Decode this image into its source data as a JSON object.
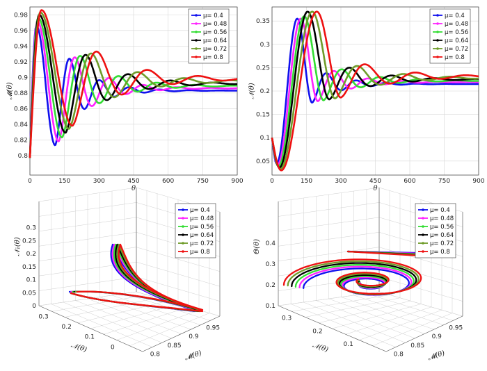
{
  "colors": [
    "#1010ee",
    "#ff22ff",
    "#33dd33",
    "#000000",
    "#6f9c2a",
    "#ee1111"
  ],
  "chart_data": [
    {
      "type": "line",
      "panel": "top-left",
      "xlabel": "θ",
      "ylabel": "𝓜(θ)",
      "xlim": [
        0,
        900
      ],
      "ylim": [
        0.775,
        0.99
      ],
      "xticks": [
        "0",
        "150",
        "300",
        "450",
        "600",
        "750",
        "900"
      ],
      "yticks": [
        "0.8",
        "0.82",
        "0.84",
        "0.86",
        "0.88",
        "0.9",
        "0.92",
        "0.94",
        "0.96",
        "0.98"
      ],
      "grid": true,
      "legend_position": "top-right",
      "series": [
        {
          "name": "μ= 0.4",
          "start": 0.797,
          "peak": 0.966,
          "peak_x": 28,
          "trough": 0.813,
          "trough_x": 110,
          "steady": 0.883,
          "period": 130
        },
        {
          "name": "μ= 0.48",
          "start": 0.797,
          "peak": 0.972,
          "peak_x": 32,
          "trough": 0.818,
          "trough_x": 125,
          "steady": 0.886,
          "period": 148
        },
        {
          "name": "μ= 0.56",
          "start": 0.797,
          "peak": 0.976,
          "peak_x": 36,
          "trough": 0.823,
          "trough_x": 140,
          "steady": 0.889,
          "period": 166
        },
        {
          "name": "μ= 0.64",
          "start": 0.797,
          "peak": 0.98,
          "peak_x": 40,
          "trough": 0.829,
          "trough_x": 155,
          "steady": 0.892,
          "period": 184
        },
        {
          "name": "μ= 0.72",
          "start": 0.797,
          "peak": 0.983,
          "peak_x": 45,
          "trough": 0.834,
          "trough_x": 170,
          "steady": 0.895,
          "period": 202
        },
        {
          "name": "μ= 0.8",
          "start": 0.797,
          "peak": 0.986,
          "peak_x": 50,
          "trough": 0.838,
          "trough_x": 185,
          "steady": 0.898,
          "period": 220
        }
      ]
    },
    {
      "type": "line",
      "panel": "top-right",
      "xlabel": "θ",
      "ylabel": "𝒩(θ)",
      "xlim": [
        0,
        900
      ],
      "ylim": [
        0.02,
        0.38
      ],
      "xticks": [
        "0",
        "150",
        "300",
        "450",
        "600",
        "750",
        "900"
      ],
      "yticks": [
        "0.05",
        "0.1",
        "0.15",
        "0.2",
        "0.25",
        "0.3",
        "0.35"
      ],
      "grid": true,
      "legend_position": "top-right",
      "series": [
        {
          "name": "μ= 0.4",
          "start": 0.1,
          "dip": 0.045,
          "dip_x": 20,
          "peak": 0.355,
          "peak_x": 110,
          "second": 0.175,
          "second_x": 175,
          "steady": 0.215,
          "period": 130
        },
        {
          "name": "μ= 0.48",
          "start": 0.1,
          "dip": 0.042,
          "dip_x": 24,
          "peak": 0.355,
          "peak_x": 125,
          "second": 0.178,
          "second_x": 200,
          "steady": 0.219,
          "period": 148
        },
        {
          "name": "μ= 0.56",
          "start": 0.1,
          "dip": 0.039,
          "dip_x": 28,
          "peak": 0.36,
          "peak_x": 140,
          "second": 0.18,
          "second_x": 225,
          "steady": 0.222,
          "period": 166
        },
        {
          "name": "μ= 0.64",
          "start": 0.1,
          "dip": 0.036,
          "dip_x": 32,
          "peak": 0.37,
          "peak_x": 155,
          "second": 0.182,
          "second_x": 250,
          "steady": 0.225,
          "period": 184
        },
        {
          "name": "μ= 0.72",
          "start": 0.1,
          "dip": 0.033,
          "dip_x": 36,
          "peak": 0.37,
          "peak_x": 175,
          "second": 0.184,
          "second_x": 275,
          "steady": 0.228,
          "period": 202
        },
        {
          "name": "μ= 0.8",
          "start": 0.1,
          "dip": 0.03,
          "dip_x": 40,
          "peak": 0.37,
          "peak_x": 195,
          "second": 0.186,
          "second_x": 300,
          "steady": 0.231,
          "period": 220
        }
      ]
    },
    {
      "type": "line3d",
      "panel": "bottom-left",
      "xlabel": "𝓜(θ)",
      "ylabel": "𝒩(θ)",
      "zlabel": "𝒩₁(θ)",
      "xticks": [
        "0.8",
        "0.85",
        "0.9",
        "0.95"
      ],
      "yticks": [
        "0.3",
        "0.2",
        "0.1",
        "0"
      ],
      "zticks": [
        "0",
        "0.05",
        "0.1",
        "0.15",
        "0.2",
        "0.25",
        "0.3"
      ],
      "grid": true,
      "legend_position": "top-right",
      "series": [
        {
          "name": "μ= 0.4"
        },
        {
          "name": "μ= 0.48"
        },
        {
          "name": "μ= 0.56"
        },
        {
          "name": "μ= 0.64"
        },
        {
          "name": "μ= 0.72"
        },
        {
          "name": "μ= 0.8"
        }
      ]
    },
    {
      "type": "line3d",
      "panel": "bottom-right",
      "xlabel": "𝓜(θ)",
      "ylabel": "𝒩(θ)",
      "zlabel": "Θ(θ)",
      "xticks": [
        "0.8",
        "0.85",
        "0.9",
        "0.95"
      ],
      "yticks": [
        "0.3",
        "0.2",
        "0.1"
      ],
      "zticks": [
        "0.1",
        "0.2",
        "0.3",
        "0.4"
      ],
      "grid": true,
      "legend_position": "top-right",
      "series": [
        {
          "name": "μ= 0.4"
        },
        {
          "name": "μ= 0.48"
        },
        {
          "name": "μ= 0.56"
        },
        {
          "name": "μ= 0.64"
        },
        {
          "name": "μ= 0.72"
        },
        {
          "name": "μ= 0.8"
        }
      ]
    }
  ]
}
